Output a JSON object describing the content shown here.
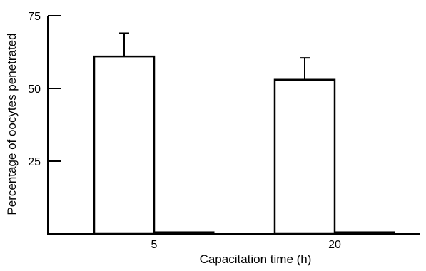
{
  "chart_data": {
    "type": "bar",
    "title": "",
    "xlabel": "Capacitation time (h)",
    "ylabel": "Percentage of oocytes penetrated",
    "ylim": [
      0,
      75
    ],
    "yticks": [
      25,
      50,
      75
    ],
    "yticks_labels": [
      "25",
      "50",
      "75"
    ],
    "categories": [
      "5",
      "20"
    ],
    "series": [
      {
        "values": [
          61,
          53
        ],
        "error": [
          8,
          7.5
        ],
        "fill": "#ffffff"
      },
      {
        "values": [
          0.5,
          0.5
        ],
        "error": [
          0,
          0
        ],
        "fill": "#000000"
      }
    ],
    "grid": false,
    "legend": "none"
  }
}
